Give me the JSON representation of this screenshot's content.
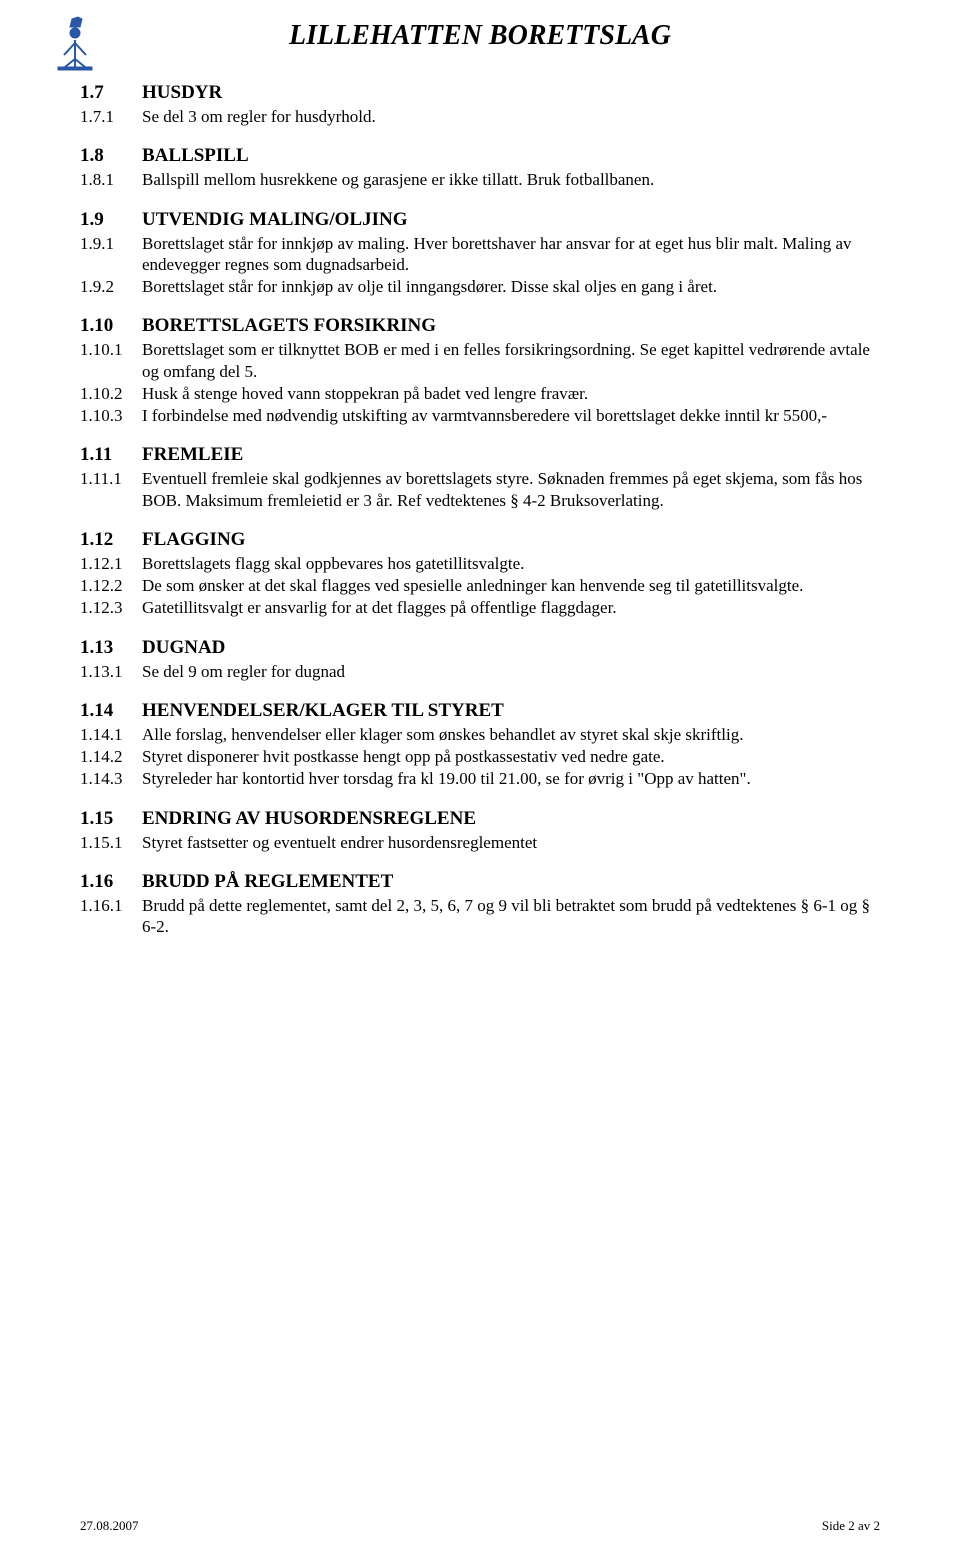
{
  "header": {
    "title": "LILLEHATTEN BORETTSLAG"
  },
  "sections": [
    {
      "num": "1.7",
      "heading": "HUSDYR",
      "items": [
        {
          "num": "1.7.1",
          "text": "Se del 3 om regler for husdyrhold."
        }
      ]
    },
    {
      "num": "1.8",
      "heading": "BALLSPILL",
      "items": [
        {
          "num": "1.8.1",
          "text": "Ballspill mellom husrekkene og garasjene er ikke tillatt. Bruk fotballbanen."
        }
      ]
    },
    {
      "num": "1.9",
      "heading": "UTVENDIG MALING/OLJING",
      "items": [
        {
          "num": "1.9.1",
          "text": "Borettslaget står for innkjøp av maling. Hver borettshaver har ansvar for at eget hus blir malt. Maling av endevegger regnes som dugnadsarbeid."
        },
        {
          "num": "1.9.2",
          "text": "Borettslaget står for innkjøp av olje til inngangsdører. Disse skal oljes en gang i året."
        }
      ]
    },
    {
      "num": "1.10",
      "heading": "BORETTSLAGETS FORSIKRING",
      "items": [
        {
          "num": "1.10.1",
          "text": "Borettslaget som er tilknyttet BOB er med i en felles forsikringsordning. Se eget kapittel vedrørende avtale og omfang del 5."
        },
        {
          "num": "1.10.2",
          "text": "Husk å stenge hoved vann stoppekran på badet ved lengre fravær."
        },
        {
          "num": "1.10.3",
          "text": "I forbindelse med nødvendig utskifting av varmtvannsberedere vil borettslaget dekke inntil kr 5500,-"
        }
      ]
    },
    {
      "num": "1.11",
      "heading": "FREMLEIE",
      "items": [
        {
          "num": "1.11.1",
          "text": "Eventuell fremleie skal godkjennes av borettslagets styre. Søknaden fremmes på eget skjema, som fås hos BOB. Maksimum fremleietid er 3 år. Ref vedtektenes § 4-2 Bruksoverlating."
        }
      ]
    },
    {
      "num": "1.12",
      "heading": "FLAGGING",
      "items": [
        {
          "num": "1.12.1",
          "text": "Borettslagets flagg skal oppbevares hos gatetillitsvalgte."
        },
        {
          "num": "1.12.2",
          "text": "De som ønsker at det skal flagges ved spesielle anledninger kan henvende seg til gatetillitsvalgte."
        },
        {
          "num": "1.12.3",
          "text": "Gatetillitsvalgt er ansvarlig for at det flagges på offentlige flaggdager."
        }
      ]
    },
    {
      "num": "1.13",
      "heading": "DUGNAD",
      "items": [
        {
          "num": "1.13.1",
          "text": "Se del 9 om regler for dugnad"
        }
      ]
    },
    {
      "num": "1.14",
      "heading": "HENVENDELSER/KLAGER TIL STYRET",
      "items": [
        {
          "num": "1.14.1",
          "text": "Alle forslag, henvendelser eller klager som ønskes behandlet av styret skal skje skriftlig."
        },
        {
          "num": "1.14.2",
          "text": "Styret disponerer hvit postkasse hengt opp på postkassestativ ved nedre gate."
        },
        {
          "num": "1.14.3",
          "text": "Styreleder har kontortid hver torsdag fra kl 19.00 til 21.00, se for øvrig i \"Opp av hatten\"."
        }
      ]
    },
    {
      "num": "1.15",
      "heading": "ENDRING AV HUSORDENSREGLENE",
      "items": [
        {
          "num": "1.15.1",
          "text": "Styret fastsetter og eventuelt endrer husordensreglementet"
        }
      ]
    },
    {
      "num": "1.16",
      "heading": "BRUDD PÅ REGLEMENTET",
      "items": [
        {
          "num": "1.16.1",
          "text": "Brudd på dette reglementet, samt del 2, 3, 5, 6, 7 og 9 vil bli betraktet som brudd på vedtektenes § 6-1 og § 6-2."
        }
      ]
    }
  ],
  "footer": {
    "left": "27.08.2007",
    "right": "Side 2 av 2"
  },
  "colors": {
    "logo": "#2956a5",
    "text": "#000000",
    "background": "#ffffff"
  }
}
